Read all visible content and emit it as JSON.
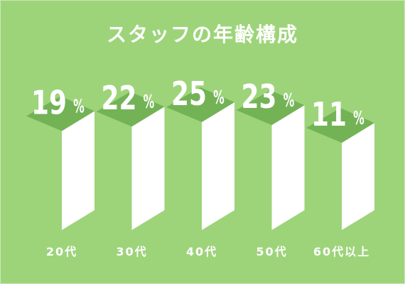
{
  "colors": {
    "background": "#9dd47a",
    "top_face": "#73b356",
    "front_face": "#ffffff",
    "text": "#ffffff"
  },
  "chart_data": {
    "type": "bar",
    "title": "スタッフの年齢構成",
    "categories": [
      "20代",
      "30代",
      "40代",
      "50代",
      "60代以上"
    ],
    "values": [
      19,
      22,
      25,
      23,
      11
    ],
    "unit": "%",
    "ylim": [
      0,
      25
    ],
    "grid": false,
    "legend": "none"
  }
}
